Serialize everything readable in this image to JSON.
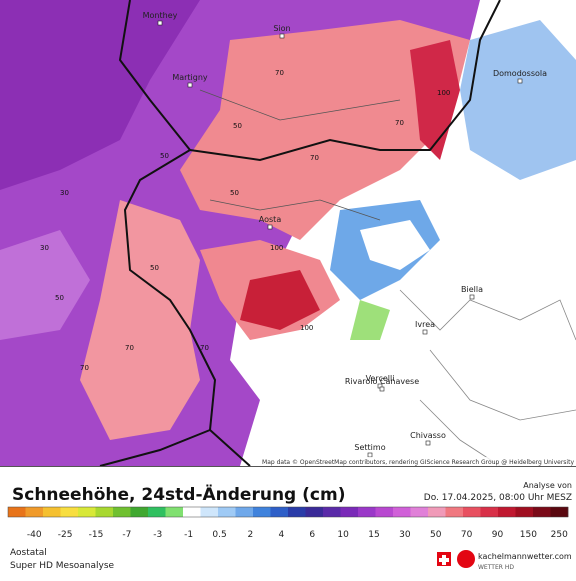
{
  "map": {
    "cities": [
      "Monthey",
      "Sion",
      "Martigny",
      "Domodossola",
      "Aosta",
      "Biella",
      "Ivrea",
      "Vercelli",
      "Settimo",
      "Chivasso",
      "Rivarolo Canavese"
    ],
    "contour_labels": [
      "50",
      "70",
      "100",
      "50",
      "70",
      "30",
      "50",
      "70",
      "100",
      "70",
      "50",
      "30",
      "70",
      "100",
      "50",
      "70"
    ],
    "attribution": "Map data © OpenStreetMap contributors, rendering GIScience Research Group @ Heidelberg University"
  },
  "legend": {
    "title": "Schneehöhe, 24std-Änderung (cm)",
    "labels": [
      -40,
      -25,
      -15,
      -7,
      -3,
      -1,
      0.5,
      2,
      4,
      6,
      10,
      15,
      30,
      50,
      70,
      90,
      150,
      250
    ],
    "analysis_label": "Analyse von",
    "analysis_time": "Do. 17.04.2025, 08:00 Uhr MESZ"
  },
  "footer": {
    "region": "Aostatal",
    "model": "Super HD Mesoanalyse",
    "brand": "kachelmannwetter.com",
    "brand_sub": "WETTER HD"
  }
}
